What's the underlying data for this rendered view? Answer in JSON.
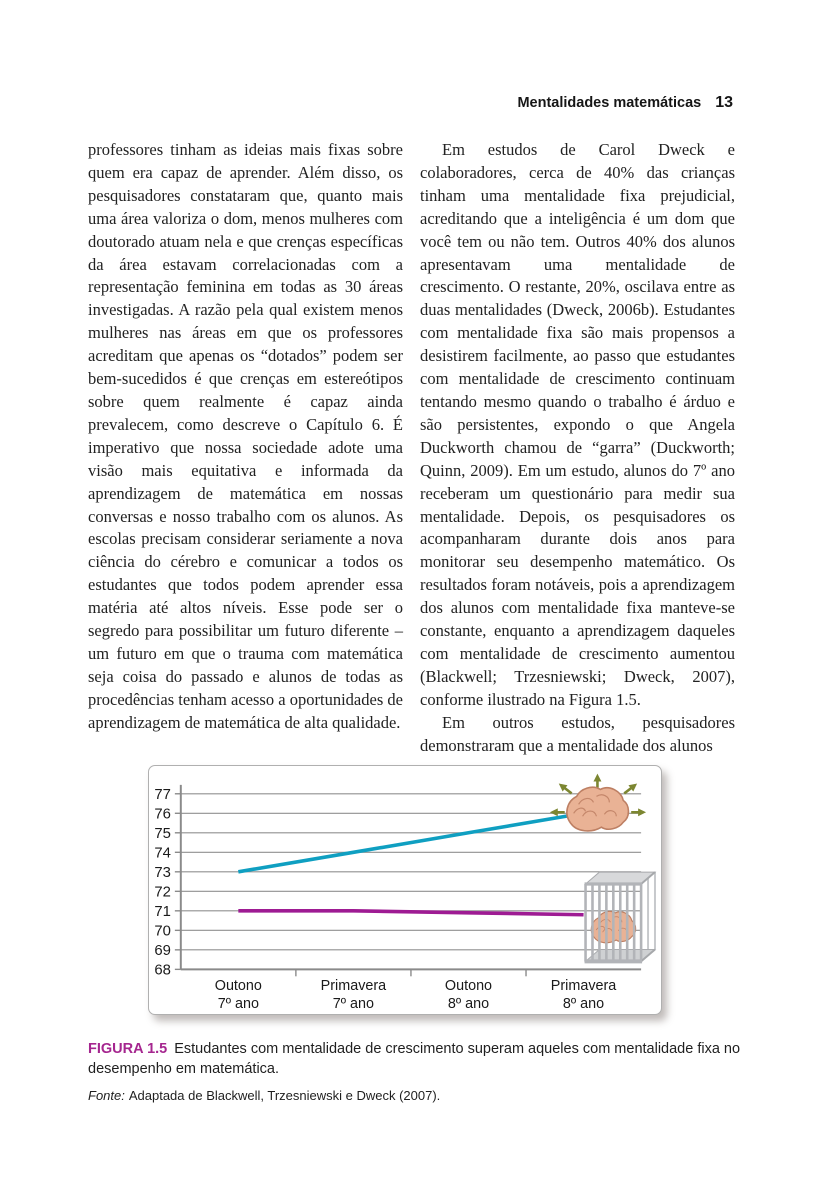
{
  "header": {
    "title": "Mentalidades matemáticas",
    "page_number": "13"
  },
  "columns": {
    "left": {
      "paragraphs": [
        "professores tinham as ideias mais fixas sobre quem era capaz de aprender. Além disso, os pesquisadores constataram que, quanto mais uma área valoriza o dom, menos mulheres com doutorado atuam nela e que crenças específicas da área estavam correlacionadas com a representação feminina em todas as 30 áreas investigadas. A razão pela qual existem menos mulheres nas áreas em que os professores acreditam que apenas os “dotados” podem ser bem-sucedidos é que crenças em estereótipos sobre quem realmente é capaz ainda prevalecem, como descreve o Capítulo 6. É imperativo que nossa sociedade adote uma visão mais equitativa e informada da aprendizagem de matemática em nossas conversas e nosso trabalho com os alunos. As escolas precisam considerar seriamente a nova ciência do cérebro e comunicar a todos os estudantes que todos podem aprender essa matéria até altos níveis. Esse pode ser o segredo para possibilitar um futuro diferente – um futuro em que o trauma com matemática seja coisa do passado e alunos de todas as procedências tenham acesso a oportunidades de aprendizagem de matemática de alta qualidade."
      ]
    },
    "right": {
      "paragraphs": [
        "Em estudos de Carol Dweck e colaboradores, cerca de 40% das crianças tinham uma mentalidade fixa prejudicial, acreditando que a inteligência é um dom que você tem ou não tem. Outros 40% dos alunos apresentavam uma mentalidade de crescimento. O restante, 20%, oscilava entre as duas mentalidades (Dweck, 2006b). Estudantes com mentalidade fixa são mais propensos a desistirem facilmente, ao passo que estudantes com mentalidade de crescimento continuam tentando mesmo quando o trabalho é árduo e são persistentes, expondo o que Angela Duckworth chamou de “garra” (Duckworth; Quinn, 2009). Em um estudo, alunos do 7º ano receberam um questionário para medir sua mentalidade. Depois, os pesquisadores os acompanharam durante dois anos para monitorar seu desempenho matemático. Os resultados foram notáveis, pois a aprendizagem dos alunos com mentalidade fixa manteve-se constante, enquanto a aprendizagem daqueles com mentalidade de crescimento aumentou (Blackwell; Trzesniewski; Dweck, 2007), conforme ilustrado na Figura 1.5.",
        "Em outros estudos, pesquisadores demonstraram que a mentalidade dos alunos"
      ]
    }
  },
  "figure": {
    "label": "FIGURA 1.5",
    "caption": "Estudantes com mentalidade de crescimento superam aqueles com mentalidade fixa no desempenho em matemática.",
    "source_label": "Fonte:",
    "source_text": "Adaptada de Blackwell, Trzesniewski e Dweck (2007).",
    "label_color": "#a5268f"
  },
  "chart_data": {
    "type": "line",
    "categories": [
      "Outono\n7º ano",
      "Primavera\n7º ano",
      "Outono\n8º ano",
      "Primavera\n8º ano"
    ],
    "series": [
      {
        "name": "mentalidade de crescimento (cérebro livre)",
        "color": "#0f9fc1",
        "values": [
          73,
          74,
          75,
          76
        ],
        "icon": "brain-free-icon"
      },
      {
        "name": "mentalidade fixa (cérebro engaiolado)",
        "color": "#9e1b93",
        "values": [
          71,
          71,
          70.9,
          70.8
        ],
        "icon": "brain-caged-icon"
      }
    ],
    "ylim": [
      68,
      77
    ],
    "yticks": [
      68,
      69,
      70,
      71,
      72,
      73,
      74,
      75,
      76,
      77
    ],
    "grid": true,
    "legend": "none",
    "grid_color": "#909090",
    "axis_color": "#8a8a8a",
    "tick_label_color": "#1a1a1a"
  }
}
